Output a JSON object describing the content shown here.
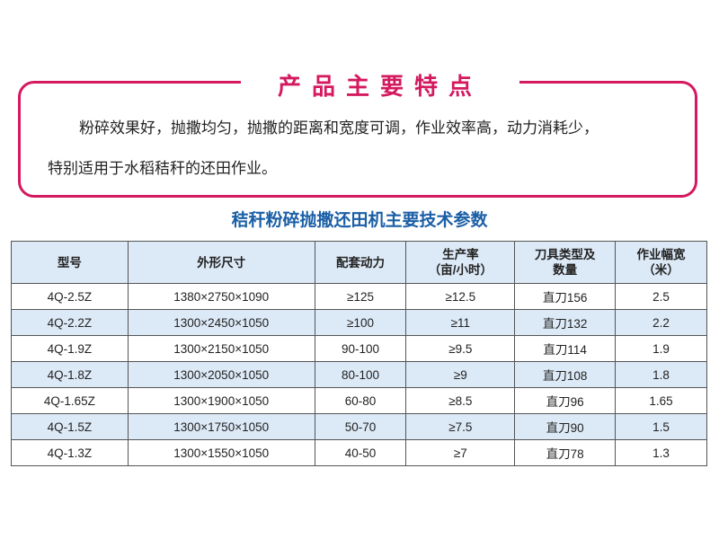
{
  "features": {
    "title": "产品主要特点",
    "line1": "粉碎效果好，抛撒均匀，抛撒的距离和宽度可调，作业效率高，动力消耗少，",
    "line2": "特别适用于水稻秸秆的还田作业。"
  },
  "specs": {
    "title": "秸秆粉碎抛撒还田机主要技术参数",
    "headers": [
      {
        "l1": "型号",
        "l2": ""
      },
      {
        "l1": "外形尺寸",
        "l2": ""
      },
      {
        "l1": "配套动力",
        "l2": ""
      },
      {
        "l1": "生产率",
        "l2": "（亩/小时）"
      },
      {
        "l1": "刀具类型及",
        "l2": "数量"
      },
      {
        "l1": "作业幅宽",
        "l2": "（米）"
      }
    ],
    "rows": [
      [
        "4Q-2.5Z",
        "1380×2750×1090",
        "≥125",
        "≥12.5",
        "直刀156",
        "2.5"
      ],
      [
        "4Q-2.2Z",
        "1300×2450×1050",
        "≥100",
        "≥11",
        "直刀132",
        "2.2"
      ],
      [
        "4Q-1.9Z",
        "1300×2150×1050",
        "90-100",
        "≥9.5",
        "直刀114",
        "1.9"
      ],
      [
        "4Q-1.8Z",
        "1300×2050×1050",
        "80-100",
        "≥9",
        "直刀108",
        "1.8"
      ],
      [
        "4Q-1.65Z",
        "1300×1900×1050",
        "60-80",
        "≥8.5",
        "直刀96",
        "1.65"
      ],
      [
        "4Q-1.5Z",
        "1300×1750×1050",
        "50-70",
        "≥7.5",
        "直刀90",
        "1.5"
      ],
      [
        "4Q-1.3Z",
        "1300×1550×1050",
        "40-50",
        "≥7",
        "直刀78",
        "1.3"
      ]
    ]
  },
  "colors": {
    "accent_pink": "#d4195e",
    "title_blue": "#1b5fa6",
    "header_bg": "#dce9f6"
  }
}
